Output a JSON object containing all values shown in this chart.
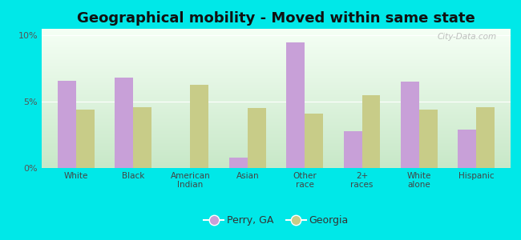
{
  "title": "Geographical mobility - Moved within same state",
  "categories": [
    "White",
    "Black",
    "American\nIndian",
    "Asian",
    "Other\nrace",
    "2+\nraces",
    "White\nalone",
    "Hispanic"
  ],
  "perry_values": [
    6.6,
    6.8,
    0.0,
    0.8,
    9.5,
    2.8,
    6.5,
    2.9
  ],
  "georgia_values": [
    4.4,
    4.6,
    6.3,
    4.5,
    4.1,
    5.5,
    4.4,
    4.6
  ],
  "perry_color": "#c8a0d8",
  "georgia_color": "#c8cc88",
  "outer_background": "#00e8e8",
  "grad_top": "#f5fff5",
  "grad_bottom": "#c8e8c8",
  "ylim": [
    0,
    10.5
  ],
  "yticks": [
    0,
    5,
    10
  ],
  "ytick_labels": [
    "0%",
    "5%",
    "10%"
  ],
  "bar_width": 0.32,
  "legend_perry": "Perry, GA",
  "legend_georgia": "Georgia",
  "title_fontsize": 13,
  "watermark": "City-Data.com"
}
